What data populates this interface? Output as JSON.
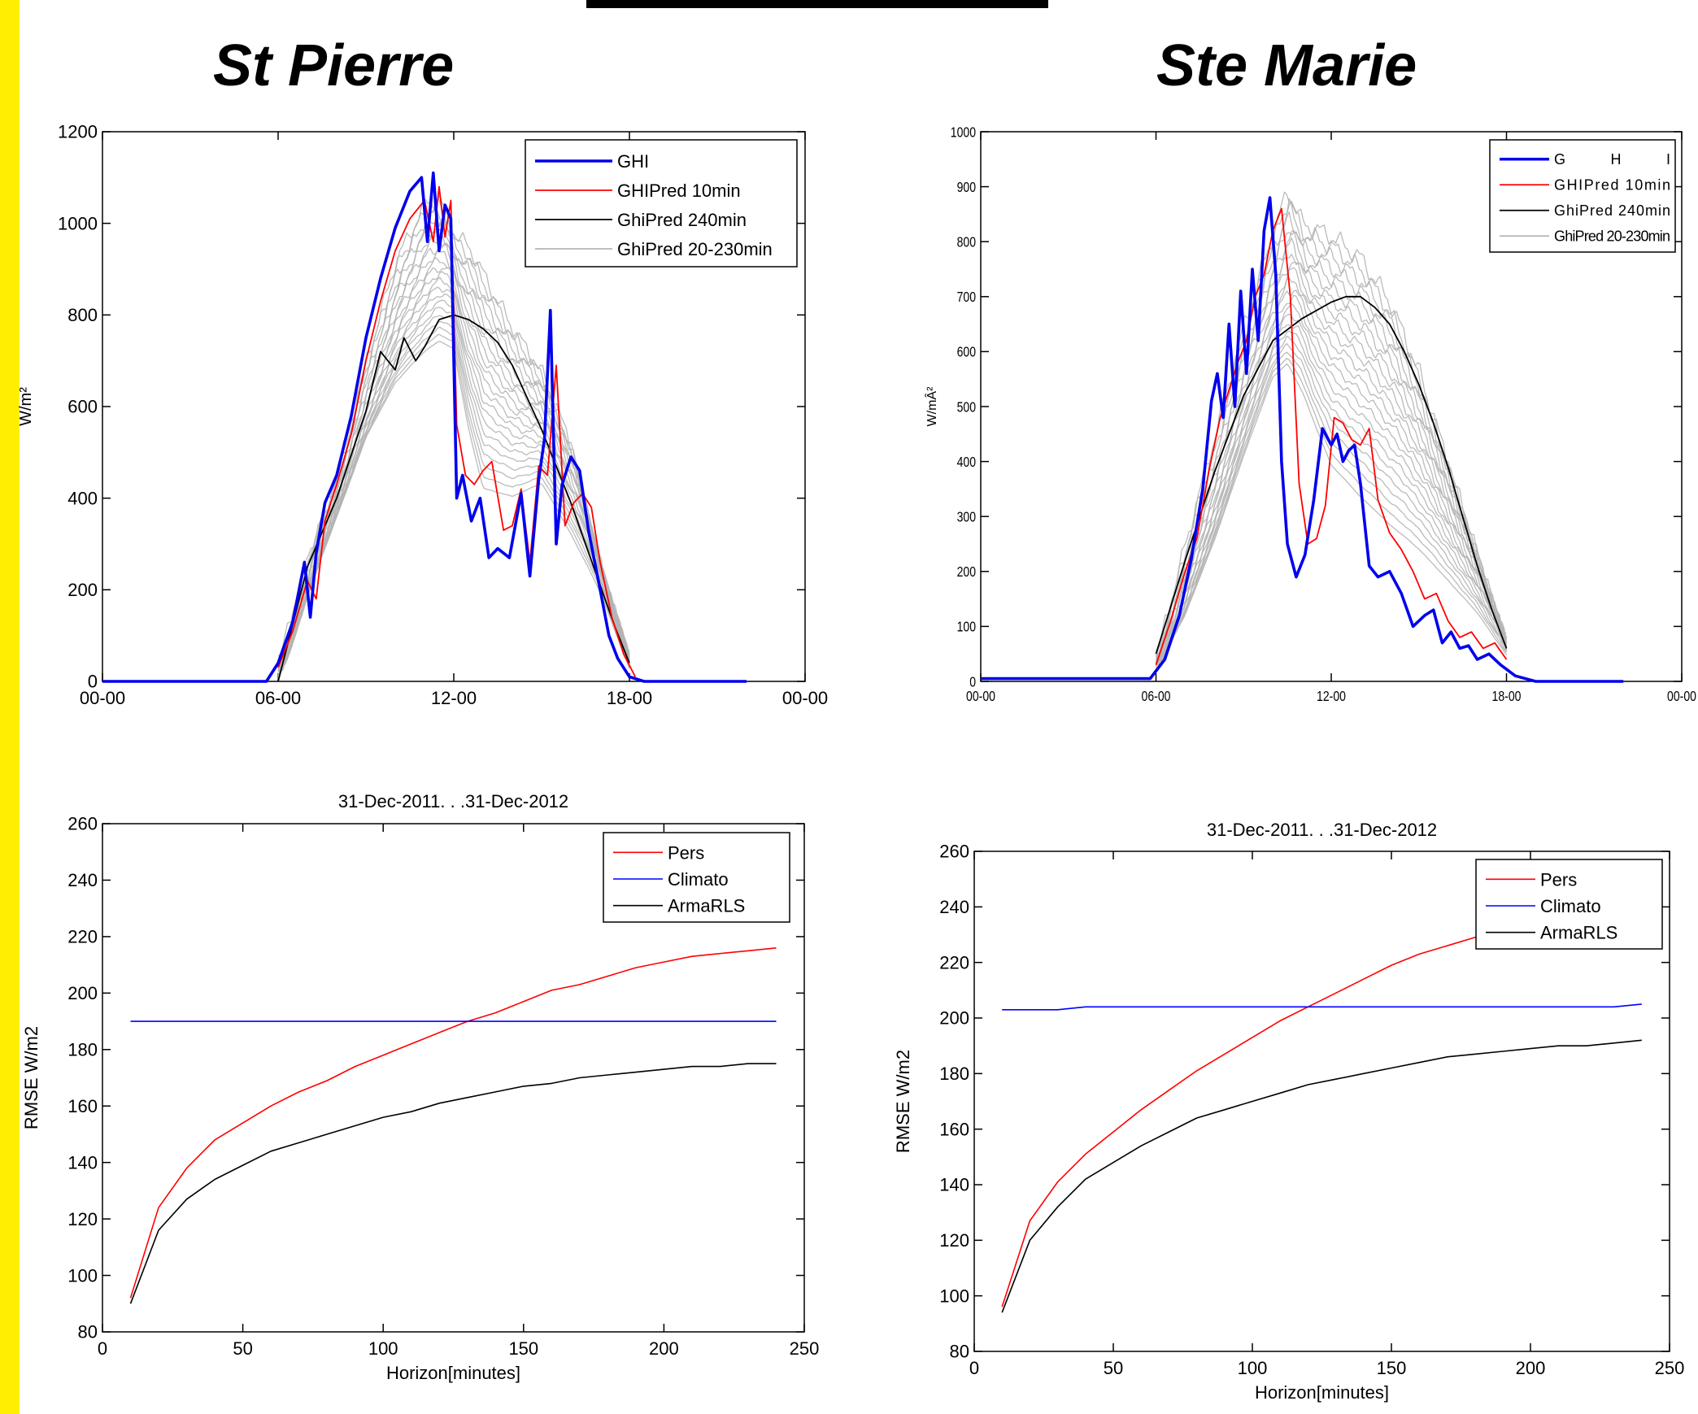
{
  "page": {
    "accent_color": "#ffee00",
    "titles": {
      "left": "St  Pierre",
      "right": "Ste  Marie"
    }
  },
  "chart_data": [
    {
      "id": "st-pierre-ghi",
      "type": "line",
      "ylabel": "W/m²",
      "ylim": [
        0,
        1200
      ],
      "yticks": [
        0,
        200,
        400,
        600,
        800,
        1000,
        1200
      ],
      "xticks": [
        "00-00",
        "06-00",
        "12-00",
        "18-00",
        "00-00"
      ],
      "xlim_hours": [
        0,
        24
      ],
      "legend": {
        "position": "top-right",
        "entries": [
          "GHI",
          "GHIPred 10min",
          "GhiPred 240min",
          "GhiPred 20-230min"
        ]
      },
      "colors": {
        "GHI": "#0000ee",
        "GHIPred 10min": "#ff0000",
        "GhiPred 240min": "#000000",
        "GhiPred 20-230min": "#b4b4b4"
      },
      "series": [
        {
          "name": "GHI",
          "x": [
            0,
            5.6,
            6.0,
            6.5,
            6.9,
            7.1,
            7.3,
            7.6,
            8.0,
            8.5,
            9.0,
            9.5,
            10.0,
            10.5,
            10.9,
            11.1,
            11.3,
            11.5,
            11.7,
            11.9,
            12.1,
            12.3,
            12.6,
            12.9,
            13.2,
            13.5,
            13.9,
            14.3,
            14.6,
            14.9,
            15.1,
            15.3,
            15.5,
            15.7,
            16.0,
            16.3,
            16.6,
            17.0,
            17.3,
            17.6,
            18.0,
            18.5,
            22.0
          ],
          "y": [
            0,
            0,
            40,
            130,
            260,
            140,
            280,
            390,
            450,
            580,
            750,
            880,
            990,
            1070,
            1100,
            960,
            1110,
            940,
            1040,
            1010,
            400,
            450,
            350,
            400,
            270,
            290,
            270,
            410,
            230,
            440,
            530,
            810,
            300,
            430,
            490,
            460,
            330,
            200,
            100,
            50,
            10,
            0,
            0
          ]
        },
        {
          "name": "GHIPred 10min",
          "x": [
            6.0,
            6.5,
            7.0,
            7.3,
            7.6,
            8.0,
            8.5,
            9.0,
            9.5,
            10.0,
            10.5,
            11.0,
            11.3,
            11.5,
            11.7,
            11.9,
            12.1,
            12.4,
            12.7,
            13.0,
            13.3,
            13.7,
            14.0,
            14.3,
            14.6,
            14.9,
            15.2,
            15.5,
            15.8,
            16.1,
            16.4,
            16.7,
            17.0,
            17.4,
            17.8,
            18.2
          ],
          "y": [
            30,
            110,
            220,
            180,
            350,
            430,
            540,
            700,
            830,
            940,
            1010,
            1050,
            960,
            1080,
            970,
            1050,
            560,
            450,
            430,
            460,
            480,
            330,
            340,
            420,
            260,
            470,
            450,
            690,
            340,
            390,
            410,
            380,
            260,
            140,
            60,
            10
          ]
        },
        {
          "name": "GhiPred 240min",
          "x": [
            6.0,
            7.0,
            8.0,
            9.0,
            9.5,
            10.0,
            10.3,
            10.7,
            11.0,
            11.5,
            12.0,
            12.5,
            13.0,
            13.5,
            14.0,
            14.5,
            15.0,
            15.5,
            16.0,
            16.5,
            17.0,
            17.5,
            18.0
          ],
          "y": [
            0,
            250,
            400,
            590,
            720,
            680,
            750,
            700,
            730,
            790,
            800,
            790,
            770,
            740,
            690,
            620,
            550,
            470,
            390,
            300,
            210,
            120,
            40
          ]
        },
        {
          "name": "GhiPred 20-230min",
          "description": "family of 22 gray forecast curves",
          "envelope_x": [
            6.0,
            7.0,
            8.0,
            9.0,
            10.0,
            11.0,
            11.5,
            12.0,
            12.5,
            13.0,
            14.0,
            15.0,
            16.0,
            17.0,
            18.0
          ],
          "envelope_upper": [
            40,
            270,
            450,
            700,
            920,
            1050,
            1060,
            980,
            960,
            900,
            780,
            680,
            520,
            250,
            30
          ],
          "envelope_lower": [
            0,
            190,
            360,
            530,
            640,
            700,
            720,
            700,
            520,
            380,
            370,
            410,
            300,
            180,
            20
          ]
        }
      ]
    },
    {
      "id": "ste-marie-ghi",
      "type": "line",
      "ylabel": "W/mÂ²",
      "ylim": [
        0,
        1000
      ],
      "yticks": [
        0,
        100,
        200,
        300,
        400,
        500,
        600,
        700,
        800,
        900,
        1000
      ],
      "xticks": [
        "00-00",
        "06-00",
        "12-00",
        "18-00",
        "00-00"
      ],
      "xlim_hours": [
        0,
        24
      ],
      "legend": {
        "position": "top-right",
        "entries": [
          "GHI",
          "GHIPred 10min",
          "GhiPred 240min",
          "GhiPred 20-230min"
        ]
      },
      "colors": {
        "GHI": "#0000ee",
        "GHIPred 10min": "#ff0000",
        "GhiPred 240min": "#000000",
        "GhiPred 20-230min": "#b4b4b4"
      },
      "series": [
        {
          "name": "GHI",
          "x": [
            0,
            5.8,
            6.3,
            6.8,
            7.2,
            7.6,
            7.9,
            8.1,
            8.3,
            8.5,
            8.7,
            8.9,
            9.1,
            9.3,
            9.5,
            9.7,
            9.9,
            10.1,
            10.3,
            10.5,
            10.8,
            11.1,
            11.4,
            11.7,
            12.0,
            12.2,
            12.4,
            12.6,
            12.8,
            13.0,
            13.3,
            13.6,
            14.0,
            14.4,
            14.8,
            15.2,
            15.5,
            15.8,
            16.1,
            16.4,
            16.7,
            17.0,
            17.4,
            17.8,
            18.3,
            19.0,
            22.0
          ],
          "y": [
            5,
            5,
            40,
            120,
            220,
            350,
            510,
            560,
            480,
            650,
            500,
            710,
            560,
            750,
            620,
            820,
            880,
            740,
            400,
            250,
            190,
            230,
            330,
            460,
            430,
            450,
            400,
            420,
            430,
            360,
            210,
            190,
            200,
            160,
            100,
            120,
            130,
            70,
            90,
            60,
            65,
            40,
            50,
            30,
            10,
            0,
            0
          ]
        },
        {
          "name": "GHIPred 10min",
          "x": [
            6.0,
            6.5,
            7.0,
            7.4,
            7.8,
            8.2,
            8.5,
            8.8,
            9.1,
            9.4,
            9.7,
            10.0,
            10.3,
            10.6,
            10.9,
            11.2,
            11.5,
            11.8,
            12.1,
            12.4,
            12.7,
            13.0,
            13.3,
            13.6,
            14.0,
            14.4,
            14.8,
            15.2,
            15.6,
            16.0,
            16.4,
            16.8,
            17.2,
            17.6,
            18.0
          ],
          "y": [
            30,
            110,
            200,
            260,
            380,
            480,
            530,
            580,
            620,
            700,
            740,
            820,
            860,
            700,
            360,
            250,
            260,
            320,
            480,
            470,
            440,
            430,
            460,
            330,
            270,
            240,
            200,
            150,
            160,
            110,
            80,
            90,
            60,
            70,
            40
          ]
        },
        {
          "name": "GhiPred 240min",
          "x": [
            6.0,
            7.0,
            8.0,
            9.0,
            10.0,
            11.0,
            12.0,
            12.5,
            13.0,
            13.5,
            14.0,
            14.5,
            15.0,
            15.5,
            16.0,
            16.5,
            17.0,
            17.5,
            18.0
          ],
          "y": [
            50,
            220,
            380,
            520,
            620,
            660,
            690,
            700,
            700,
            680,
            650,
            600,
            540,
            470,
            390,
            300,
            210,
            130,
            60
          ]
        },
        {
          "name": "GhiPred 20-230min",
          "description": "family of 22 gray forecast curves",
          "envelope_x": [
            6.0,
            7.0,
            8.0,
            9.0,
            10.0,
            10.5,
            11.0,
            12.0,
            13.0,
            14.0,
            15.0,
            16.0,
            17.0,
            18.0
          ],
          "envelope_upper": [
            40,
            250,
            450,
            650,
            820,
            900,
            840,
            820,
            780,
            700,
            570,
            400,
            230,
            60
          ],
          "envelope_lower": [
            30,
            120,
            250,
            400,
            540,
            560,
            500,
            360,
            300,
            250,
            210,
            160,
            110,
            40
          ]
        }
      ]
    },
    {
      "id": "st-pierre-rmse",
      "type": "line",
      "title": "31-Dec-2011. . .31-Dec-2012",
      "xlabel": "Horizon[minutes]",
      "ylabel": "RMSE W/m2",
      "xlim": [
        0,
        250
      ],
      "ylim": [
        80,
        260
      ],
      "xticks": [
        0,
        50,
        100,
        150,
        200,
        250
      ],
      "yticks": [
        80,
        100,
        120,
        140,
        160,
        180,
        200,
        220,
        240,
        260
      ],
      "legend": {
        "position": "top-right",
        "entries": [
          "Pers",
          "Climato",
          "ArmaRLS"
        ]
      },
      "colors": {
        "Pers": "#ff0000",
        "Climato": "#0000ff",
        "ArmaRLS": "#000000"
      },
      "x": [
        10,
        20,
        30,
        40,
        50,
        60,
        70,
        80,
        90,
        100,
        110,
        120,
        130,
        140,
        150,
        160,
        170,
        180,
        190,
        200,
        210,
        220,
        230,
        240
      ],
      "series": [
        {
          "name": "Pers",
          "values": [
            92,
            124,
            138,
            148,
            154,
            160,
            165,
            169,
            174,
            178,
            182,
            186,
            190,
            193,
            197,
            201,
            203,
            206,
            209,
            211,
            213,
            214,
            215,
            216
          ]
        },
        {
          "name": "Climato",
          "values": [
            190,
            190,
            190,
            190,
            190,
            190,
            190,
            190,
            190,
            190,
            190,
            190,
            190,
            190,
            190,
            190,
            190,
            190,
            190,
            190,
            190,
            190,
            190,
            190
          ]
        },
        {
          "name": "ArmaRLS",
          "values": [
            90,
            116,
            127,
            134,
            139,
            144,
            147,
            150,
            153,
            156,
            158,
            161,
            163,
            165,
            167,
            168,
            170,
            171,
            172,
            173,
            174,
            174,
            175,
            175
          ]
        }
      ]
    },
    {
      "id": "ste-marie-rmse",
      "type": "line",
      "title": "31-Dec-2011. . .31-Dec-2012",
      "xlabel": "Horizon[minutes]",
      "ylabel": "RMSE W/m2",
      "xlim": [
        0,
        250
      ],
      "ylim": [
        80,
        260
      ],
      "xticks": [
        0,
        50,
        100,
        150,
        200,
        250
      ],
      "yticks": [
        80,
        100,
        120,
        140,
        160,
        180,
        200,
        220,
        240,
        260
      ],
      "legend": {
        "position": "top-right",
        "entries": [
          "Pers",
          "Climato",
          "ArmaRLS"
        ]
      },
      "colors": {
        "Pers": "#ff0000",
        "Climato": "#0000ff",
        "ArmaRLS": "#000000"
      },
      "x": [
        10,
        20,
        30,
        40,
        50,
        60,
        70,
        80,
        90,
        100,
        110,
        120,
        130,
        140,
        150,
        160,
        170,
        180,
        190,
        200,
        210,
        220,
        230,
        240
      ],
      "series": [
        {
          "name": "Pers",
          "values": [
            96,
            127,
            141,
            151,
            159,
            167,
            174,
            181,
            187,
            193,
            199,
            204,
            209,
            214,
            219,
            223,
            226,
            229,
            232,
            235,
            237,
            239,
            241,
            242
          ]
        },
        {
          "name": "Climato",
          "values": [
            203,
            203,
            203,
            204,
            204,
            204,
            204,
            204,
            204,
            204,
            204,
            204,
            204,
            204,
            204,
            204,
            204,
            204,
            204,
            204,
            204,
            204,
            204,
            205
          ]
        },
        {
          "name": "ArmaRLS",
          "values": [
            94,
            120,
            132,
            142,
            148,
            154,
            159,
            164,
            167,
            170,
            173,
            176,
            178,
            180,
            182,
            184,
            186,
            187,
            188,
            189,
            190,
            190,
            191,
            192
          ]
        }
      ]
    }
  ]
}
